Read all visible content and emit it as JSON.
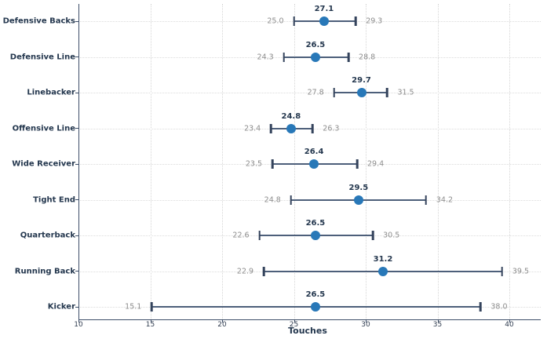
{
  "chart_data": {
    "type": "scatter",
    "subtype": "horizontal-errorbar-dot-range",
    "title": "",
    "xlabel": "Touches",
    "ylabel": "",
    "xlim": [
      10,
      42
    ],
    "xticks": [
      10,
      15,
      20,
      25,
      30,
      35,
      40
    ],
    "grid": true,
    "legend": null,
    "value_format_decimals": 1,
    "categories": [
      "Defensive Backs",
      "Defensive Line",
      "Linebacker",
      "Offensive Line",
      "Wide Receiver",
      "Tight End",
      "Quarterback",
      "Running Back",
      "Kicker"
    ],
    "points": [
      {
        "category": "Defensive Backs",
        "low": 25.0,
        "center": 27.1,
        "high": 29.3
      },
      {
        "category": "Defensive Line",
        "low": 24.3,
        "center": 26.5,
        "high": 28.8
      },
      {
        "category": "Linebacker",
        "low": 27.8,
        "center": 29.7,
        "high": 31.5
      },
      {
        "category": "Offensive Line",
        "low": 23.4,
        "center": 24.8,
        "high": 26.3
      },
      {
        "category": "Wide Receiver",
        "low": 23.5,
        "center": 26.4,
        "high": 29.4
      },
      {
        "category": "Tight End",
        "low": 24.8,
        "center": 29.5,
        "high": 34.2
      },
      {
        "category": "Quarterback",
        "low": 22.6,
        "center": 26.5,
        "high": 30.5
      },
      {
        "category": "Running Back",
        "low": 22.9,
        "center": 31.2,
        "high": 39.5
      },
      {
        "category": "Kicker",
        "low": 15.1,
        "center": 26.5,
        "high": 38.0
      }
    ],
    "colors": {
      "dot": "#2878b8",
      "errorbar_line": "#4d5f7a",
      "errorbar_cap": "#34435c",
      "category_label": "#24374e",
      "center_label": "#24374e",
      "range_label": "#8d8d8d",
      "tick_label": "#333f52",
      "grid": "#d8d8d8",
      "spine": "#3d4e68",
      "background": "#ffffff"
    }
  }
}
